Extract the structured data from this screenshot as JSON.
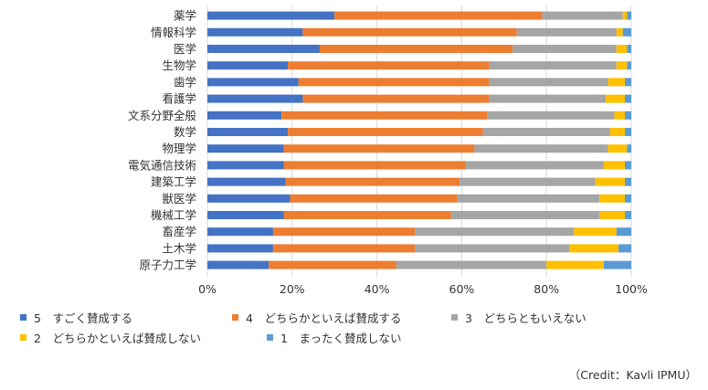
{
  "chart_data": {
    "type": "bar",
    "orientation": "horizontal",
    "stacked": "percent",
    "categories": [
      "薬学",
      "情報科学",
      "医学",
      "生物学",
      "歯学",
      "看護学",
      "文系分野全般",
      "数学",
      "物理学",
      "電気通信技術",
      "建築工学",
      "獣医学",
      "機械工学",
      "畜産学",
      "土木学",
      "原子力工学"
    ],
    "series": [
      {
        "name": "5　すごく賛成する",
        "color": "#4472C4",
        "values": [
          30,
          22.5,
          26.5,
          19,
          21.5,
          22.5,
          17.5,
          19,
          18,
          18,
          18.5,
          19.5,
          18,
          15.5,
          15.5,
          14.5
        ]
      },
      {
        "name": "4　どちらかといえば賛成する",
        "color": "#ED7D31",
        "values": [
          49,
          50.5,
          45.5,
          47.5,
          45,
          44,
          48.5,
          46,
          45,
          43,
          41,
          39.5,
          39.5,
          33.5,
          33.5,
          30
        ]
      },
      {
        "name": "3　どちらともいえない",
        "color": "#A5A5A5",
        "values": [
          19,
          23.5,
          24.5,
          30,
          28,
          27.5,
          30,
          30,
          31.5,
          32.5,
          32,
          33.5,
          35,
          37.5,
          36.5,
          35.5
        ]
      },
      {
        "name": "2　どちらかといえば賛成しない",
        "color": "#FFC000",
        "values": [
          1,
          1.5,
          2.5,
          2.5,
          4,
          4.5,
          2.5,
          3.5,
          4.5,
          5,
          7,
          6,
          6,
          10,
          11.5,
          13.5
        ]
      },
      {
        "name": "1　まったく賛成しない",
        "color": "#5B9BD5",
        "values": [
          1,
          2,
          1,
          1,
          1.5,
          1.5,
          1.5,
          1.5,
          1,
          1.5,
          1.5,
          1.5,
          1.5,
          3.5,
          3,
          6.5
        ]
      }
    ],
    "xlim": [
      0,
      100
    ],
    "xticks": [
      "0%",
      "20%",
      "40%",
      "60%",
      "80%",
      "100%"
    ],
    "grid": true,
    "legend_position": "bottom"
  },
  "credit": "（Credit：Kavli IPMU）"
}
